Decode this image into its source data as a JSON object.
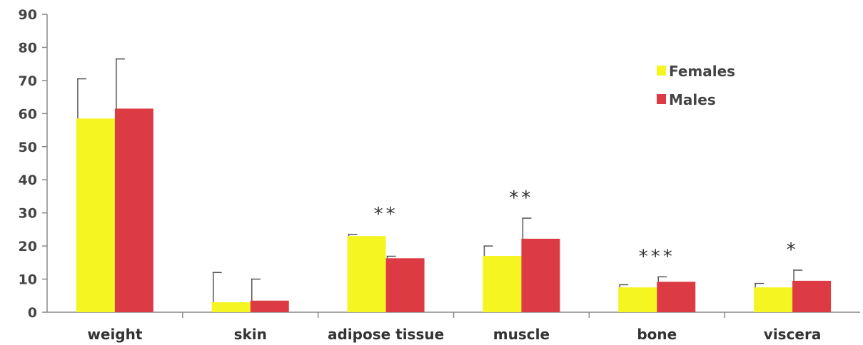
{
  "chart_data": {
    "type": "bar",
    "title": "",
    "xlabel": "",
    "ylabel": "",
    "ylim": [
      0,
      90
    ],
    "yticks": [
      0,
      10,
      20,
      30,
      40,
      50,
      60,
      70,
      80,
      90
    ],
    "grid": false,
    "legend_position": "top-right",
    "categories": [
      "weight",
      "skin",
      "adipose tissue",
      "muscle",
      "bone",
      "viscera"
    ],
    "series": [
      {
        "name": "Females",
        "color": "#f5f521",
        "values": [
          58.5,
          3,
          23,
          17,
          7.5,
          7.5
        ],
        "error": [
          12,
          9,
          0.5,
          3,
          0.8,
          1.2
        ]
      },
      {
        "name": "Males",
        "color": "#dd3b44",
        "values": [
          61.5,
          3.5,
          16.3,
          22.2,
          9.2,
          9.5
        ],
        "error": [
          15,
          6.5,
          0.6,
          6.2,
          1.5,
          3.2
        ]
      }
    ],
    "annotations": [
      "",
      "",
      "**",
      "**",
      "***",
      "*"
    ]
  }
}
